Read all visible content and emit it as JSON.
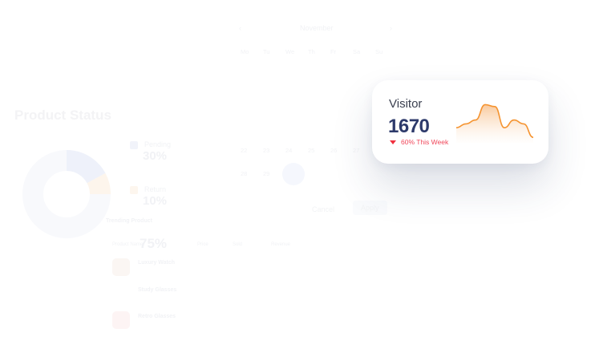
{
  "background": {
    "product_status": {
      "title": "Product Status",
      "legend": [
        {
          "label": "Pending",
          "value": "30%",
          "color": "#eef1fb"
        },
        {
          "label": "Return",
          "value": "10%",
          "color": "#fdf3e8"
        }
      ],
      "center_value": "75%"
    },
    "trending": {
      "title": "Trending Product",
      "columns": [
        "Product Name",
        "Price",
        "Sold",
        "Revenue"
      ],
      "rows": [
        {
          "name": "Luxury Watch"
        },
        {
          "name": "Study Glasses"
        },
        {
          "name": "Retro Glasses"
        }
      ]
    },
    "calendar": {
      "month": "November",
      "days_of_week": [
        "Mo",
        "Tu",
        "We",
        "Th",
        "Fr",
        "Sa",
        "Su"
      ],
      "row1": [
        "22",
        "23",
        "24",
        "25",
        "26",
        "27"
      ],
      "row2": [
        "28",
        "29",
        "30"
      ],
      "selected": "30",
      "cancel_label": "Cancel",
      "apply_label": "Apply"
    }
  },
  "visitor_card": {
    "title": "Visitor",
    "value": "1670",
    "change": "60% This Week",
    "trend": "down",
    "down_color": "#f0475a",
    "chart_color": "#f5932f",
    "sparkline": [
      0.35,
      0.45,
      0.55,
      0.95,
      0.9,
      0.35,
      0.55,
      0.45,
      0.1
    ]
  }
}
